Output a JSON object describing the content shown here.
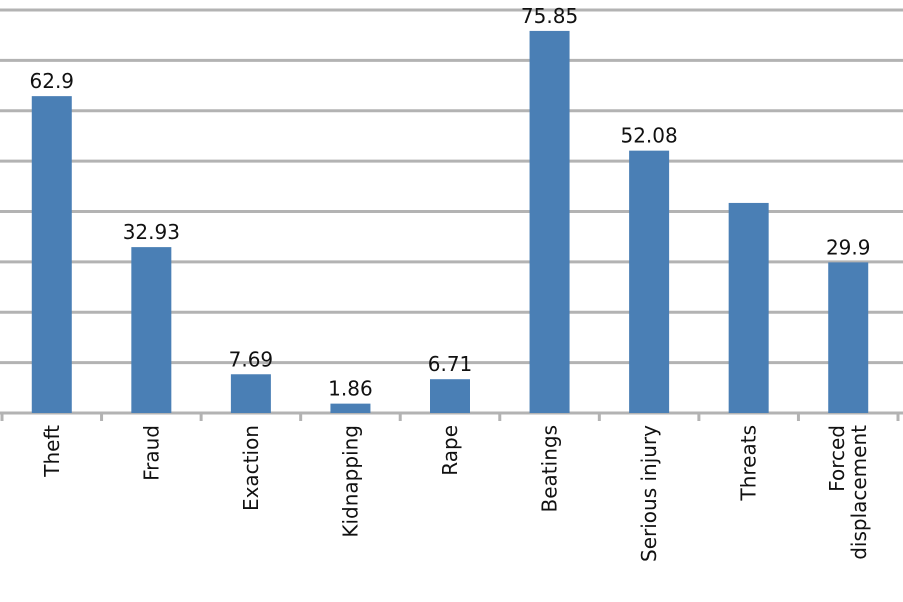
{
  "chart_data": {
    "type": "bar",
    "categories": [
      "Theft",
      "Fraud",
      "Exaction",
      "Kidnapping",
      "Rape",
      "Beatings",
      "Serious injury",
      "Threats",
      "Forced displacement"
    ],
    "values": [
      62.9,
      32.93,
      7.69,
      1.86,
      6.71,
      75.85,
      52.08,
      41.7,
      29.9
    ],
    "value_labels": [
      "62.9",
      "32.93",
      "7.69",
      "1.86",
      "6.71",
      "75.85",
      "52.08",
      null,
      "29.9"
    ],
    "color": "#4a7fb5",
    "ylim": [
      0,
      80
    ],
    "yticks": [
      0,
      10,
      20,
      30,
      40,
      50,
      60,
      70,
      80
    ],
    "grid": true
  }
}
